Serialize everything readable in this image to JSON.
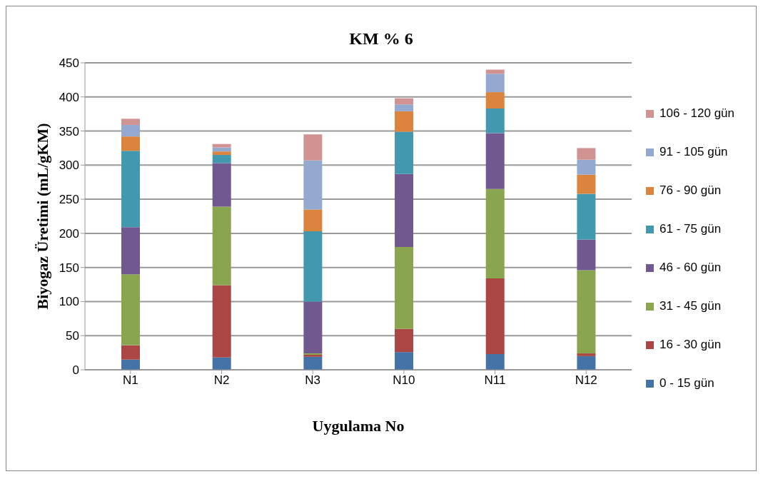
{
  "chart_data": {
    "type": "bar",
    "title": "KM % 6",
    "xlabel": "Uygulama No",
    "ylabel": "Biyogaz Üretimi (mL/gKM)",
    "categories": [
      "N1",
      "N2",
      "N3",
      "N10",
      "N11",
      "N12"
    ],
    "stacked": true,
    "ylim": [
      0,
      450
    ],
    "yticks": [
      0,
      50,
      100,
      150,
      200,
      250,
      300,
      350,
      400,
      450
    ],
    "grid": "y",
    "legend": "right",
    "series": [
      {
        "name": "0 - 15 gün",
        "color": "#4572a7",
        "values": [
          15,
          18,
          19,
          26,
          23,
          20
        ]
      },
      {
        "name": "16 - 30 gün",
        "color": "#aa4643",
        "values": [
          21,
          106,
          3,
          34,
          111,
          4
        ]
      },
      {
        "name": "31 - 45 gün",
        "color": "#89a54e",
        "values": [
          104,
          115,
          2,
          120,
          131,
          122
        ]
      },
      {
        "name": "46 - 60 gün",
        "color": "#71588f",
        "values": [
          69,
          64,
          76,
          107,
          82,
          45
        ]
      },
      {
        "name": "61 - 75 gün",
        "color": "#4198af",
        "values": [
          112,
          12,
          103,
          62,
          36,
          67
        ]
      },
      {
        "name": "76 - 90 gün",
        "color": "#db843d",
        "values": [
          21,
          5,
          32,
          30,
          24,
          28
        ]
      },
      {
        "name": "91 - 105 gün",
        "color": "#93a9cf",
        "values": [
          17,
          6,
          72,
          10,
          27,
          22
        ]
      },
      {
        "name": "106 - 120 gün",
        "color": "#d19392",
        "values": [
          9,
          5,
          38,
          9,
          6,
          17
        ]
      }
    ]
  }
}
